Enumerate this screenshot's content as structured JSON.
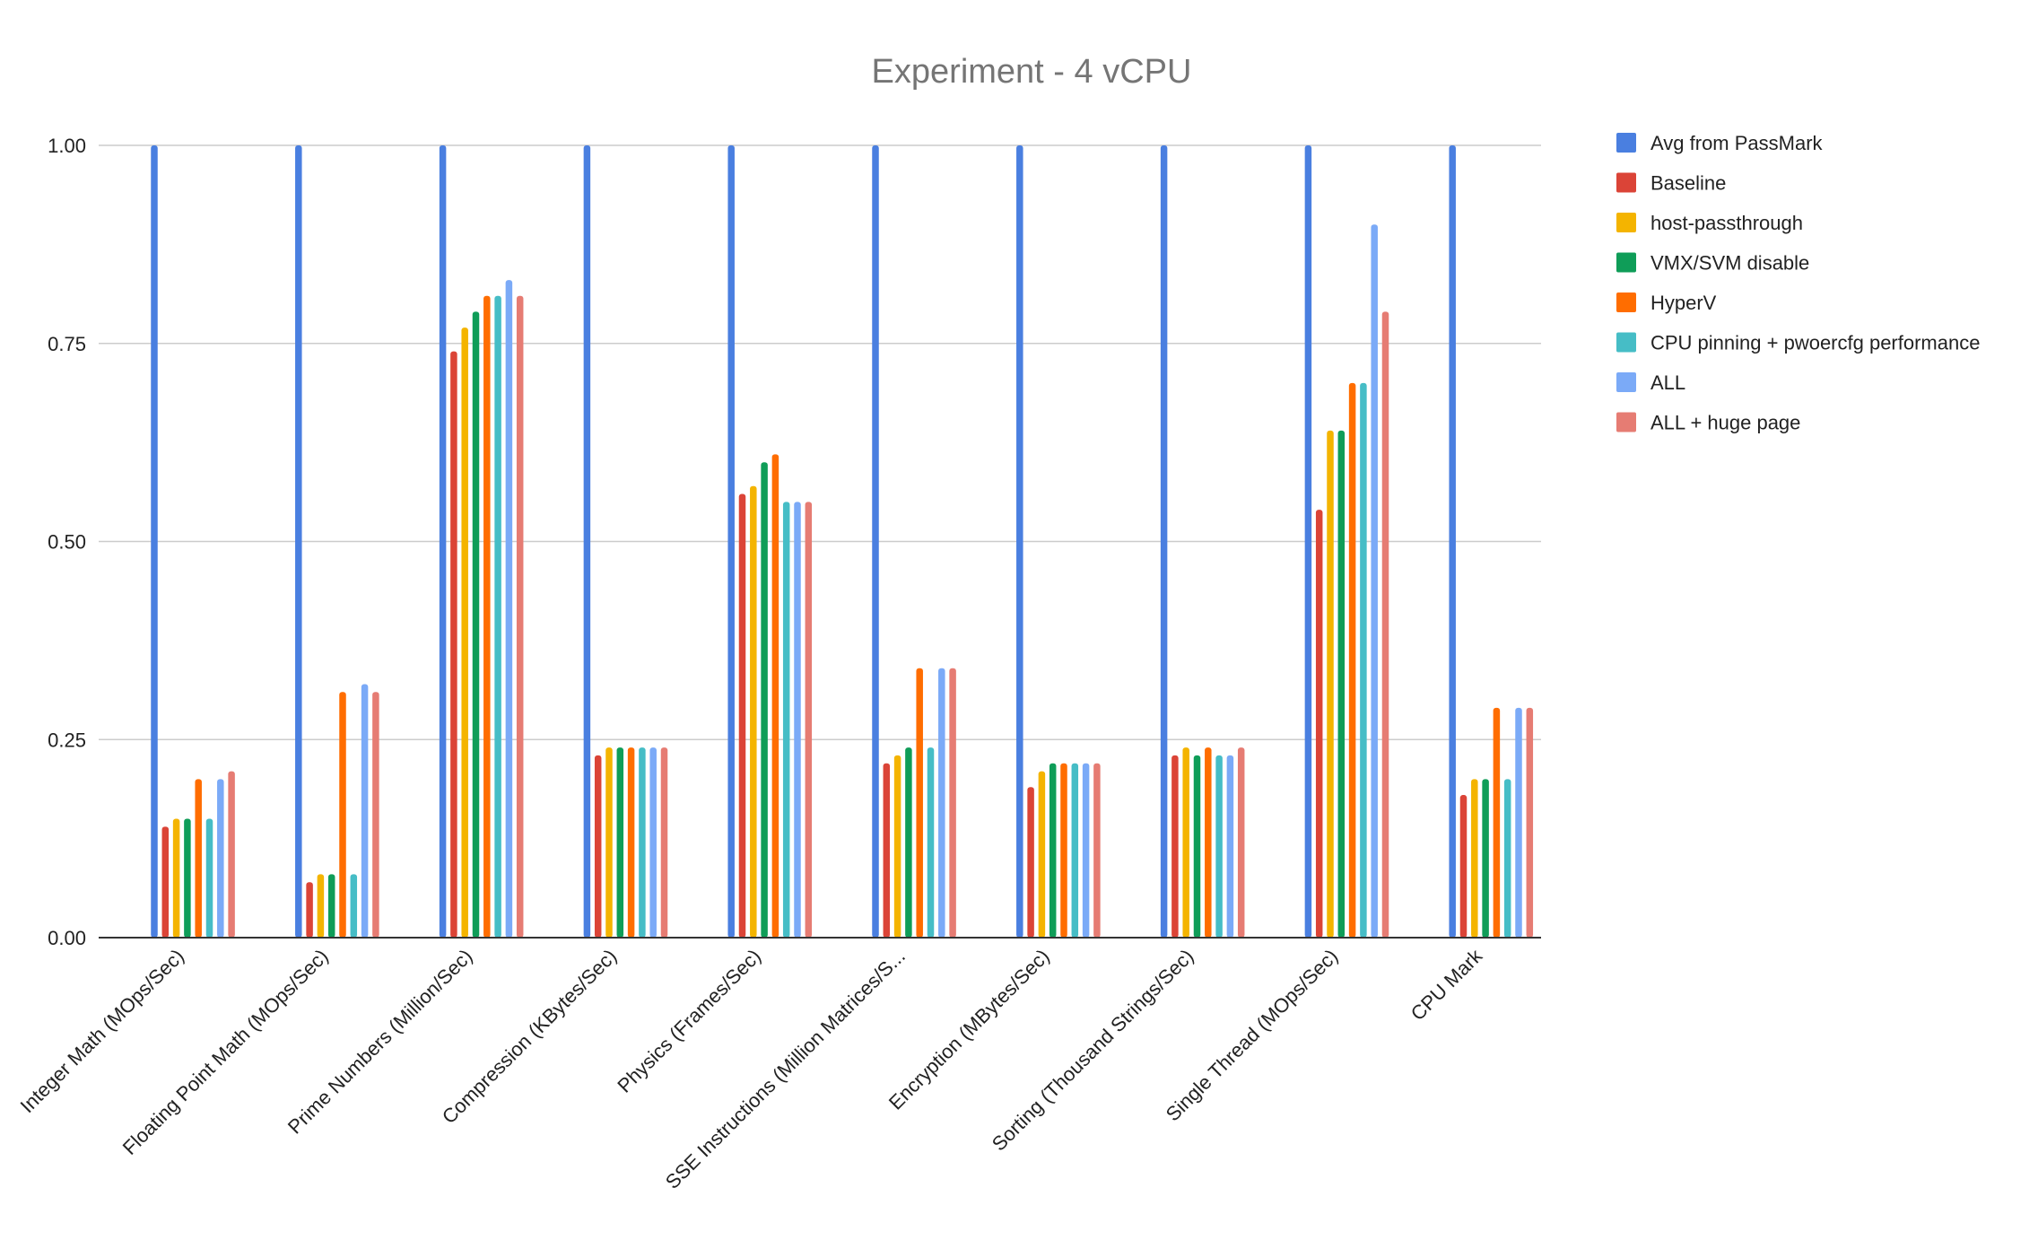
{
  "chart_data": {
    "type": "bar",
    "title": "Experiment - 4 vCPU",
    "xlabel": "",
    "ylabel": "",
    "ylim": [
      0,
      1
    ],
    "yticks": [
      "0.00",
      "0.25",
      "0.50",
      "0.75",
      "1.00"
    ],
    "grid": true,
    "legend_position": "right",
    "categories": [
      "Integer Math (MOps/Sec)",
      "Floating Point Math (MOps/Sec)",
      "Prime Numbers (Million/Sec)",
      "Compression (KBytes/Sec)",
      "Physics (Frames/Sec)",
      "SSE Instructions (Million Matrices/S...",
      "Encryption (MBytes/Sec)",
      "Sorting (Thousand Strings/Sec)",
      "Single Thread (MOps/Sec)",
      "CPU Mark"
    ],
    "series": [
      {
        "name": "Avg from PassMark",
        "color": "#4a7fe0",
        "values": [
          1.0,
          1.0,
          1.0,
          1.0,
          1.0,
          1.0,
          1.0,
          1.0,
          1.0,
          1.0
        ]
      },
      {
        "name": "Baseline",
        "color": "#db4437",
        "values": [
          0.14,
          0.07,
          0.74,
          0.23,
          0.56,
          0.22,
          0.19,
          0.23,
          0.54,
          0.18
        ]
      },
      {
        "name": "host-passthrough",
        "color": "#f4b400",
        "values": [
          0.15,
          0.08,
          0.77,
          0.24,
          0.57,
          0.23,
          0.21,
          0.24,
          0.64,
          0.2
        ]
      },
      {
        "name": "VMX/SVM disable",
        "color": "#0f9d58",
        "values": [
          0.15,
          0.08,
          0.79,
          0.24,
          0.6,
          0.24,
          0.22,
          0.23,
          0.64,
          0.2
        ]
      },
      {
        "name": "HyperV",
        "color": "#ff6d00",
        "values": [
          0.2,
          0.31,
          0.81,
          0.24,
          0.61,
          0.34,
          0.22,
          0.24,
          0.7,
          0.29
        ]
      },
      {
        "name": "CPU pinning + pwoercfg performance",
        "color": "#46bdc6",
        "values": [
          0.15,
          0.08,
          0.81,
          0.24,
          0.55,
          0.24,
          0.22,
          0.23,
          0.7,
          0.2
        ]
      },
      {
        "name": "ALL",
        "color": "#7baaf7",
        "values": [
          0.2,
          0.32,
          0.83,
          0.24,
          0.55,
          0.34,
          0.22,
          0.23,
          0.9,
          0.29
        ]
      },
      {
        "name": "ALL + huge page",
        "color": "#e67c73",
        "values": [
          0.21,
          0.31,
          0.81,
          0.24,
          0.55,
          0.34,
          0.22,
          0.24,
          0.79,
          0.29
        ]
      }
    ]
  }
}
